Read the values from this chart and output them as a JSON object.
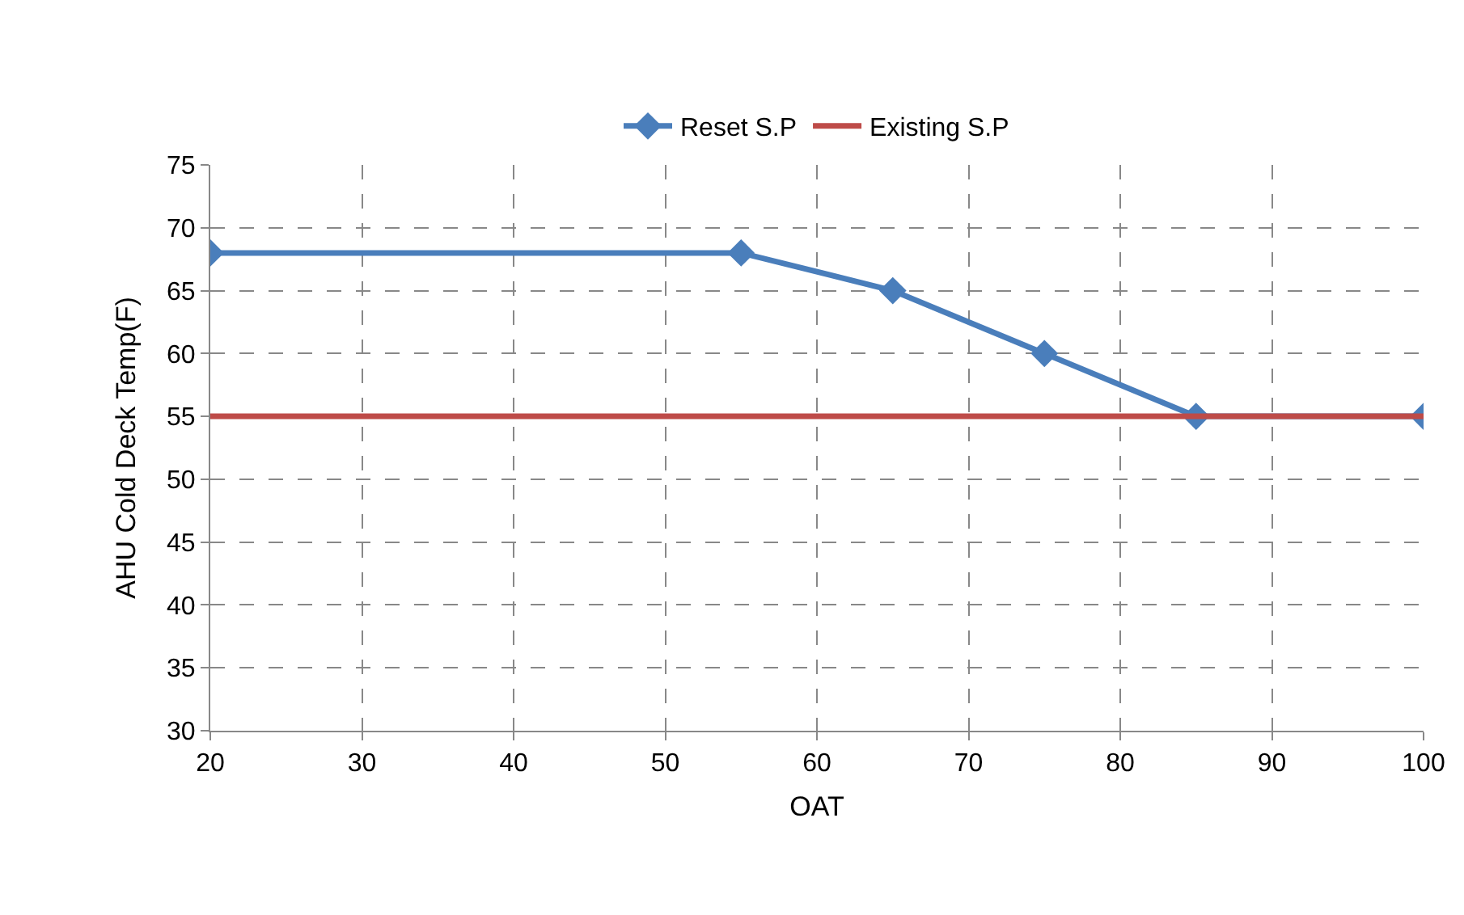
{
  "chart_data": {
    "type": "line",
    "xlabel": "OAT",
    "ylabel": "AHU Cold Deck Temp(F)",
    "series": [
      {
        "name": "Reset S.P",
        "color": "#4a7ebb",
        "marker": "diamond",
        "x": [
          20,
          55,
          65,
          75,
          85,
          100
        ],
        "values": [
          68,
          68,
          65,
          60,
          55,
          55
        ]
      },
      {
        "name": "Existing S.P",
        "color": "#be4b48",
        "marker": "none",
        "x": [
          20,
          100
        ],
        "values": [
          55,
          55
        ]
      }
    ],
    "xlim": [
      20,
      100
    ],
    "xticks": [
      20,
      30,
      40,
      50,
      60,
      70,
      80,
      90,
      100
    ],
    "ylim": [
      30,
      75
    ],
    "yticks": [
      30,
      35,
      40,
      45,
      50,
      55,
      60,
      65,
      70,
      75
    ],
    "grid": true,
    "legend": "top",
    "line_style": "solid"
  }
}
